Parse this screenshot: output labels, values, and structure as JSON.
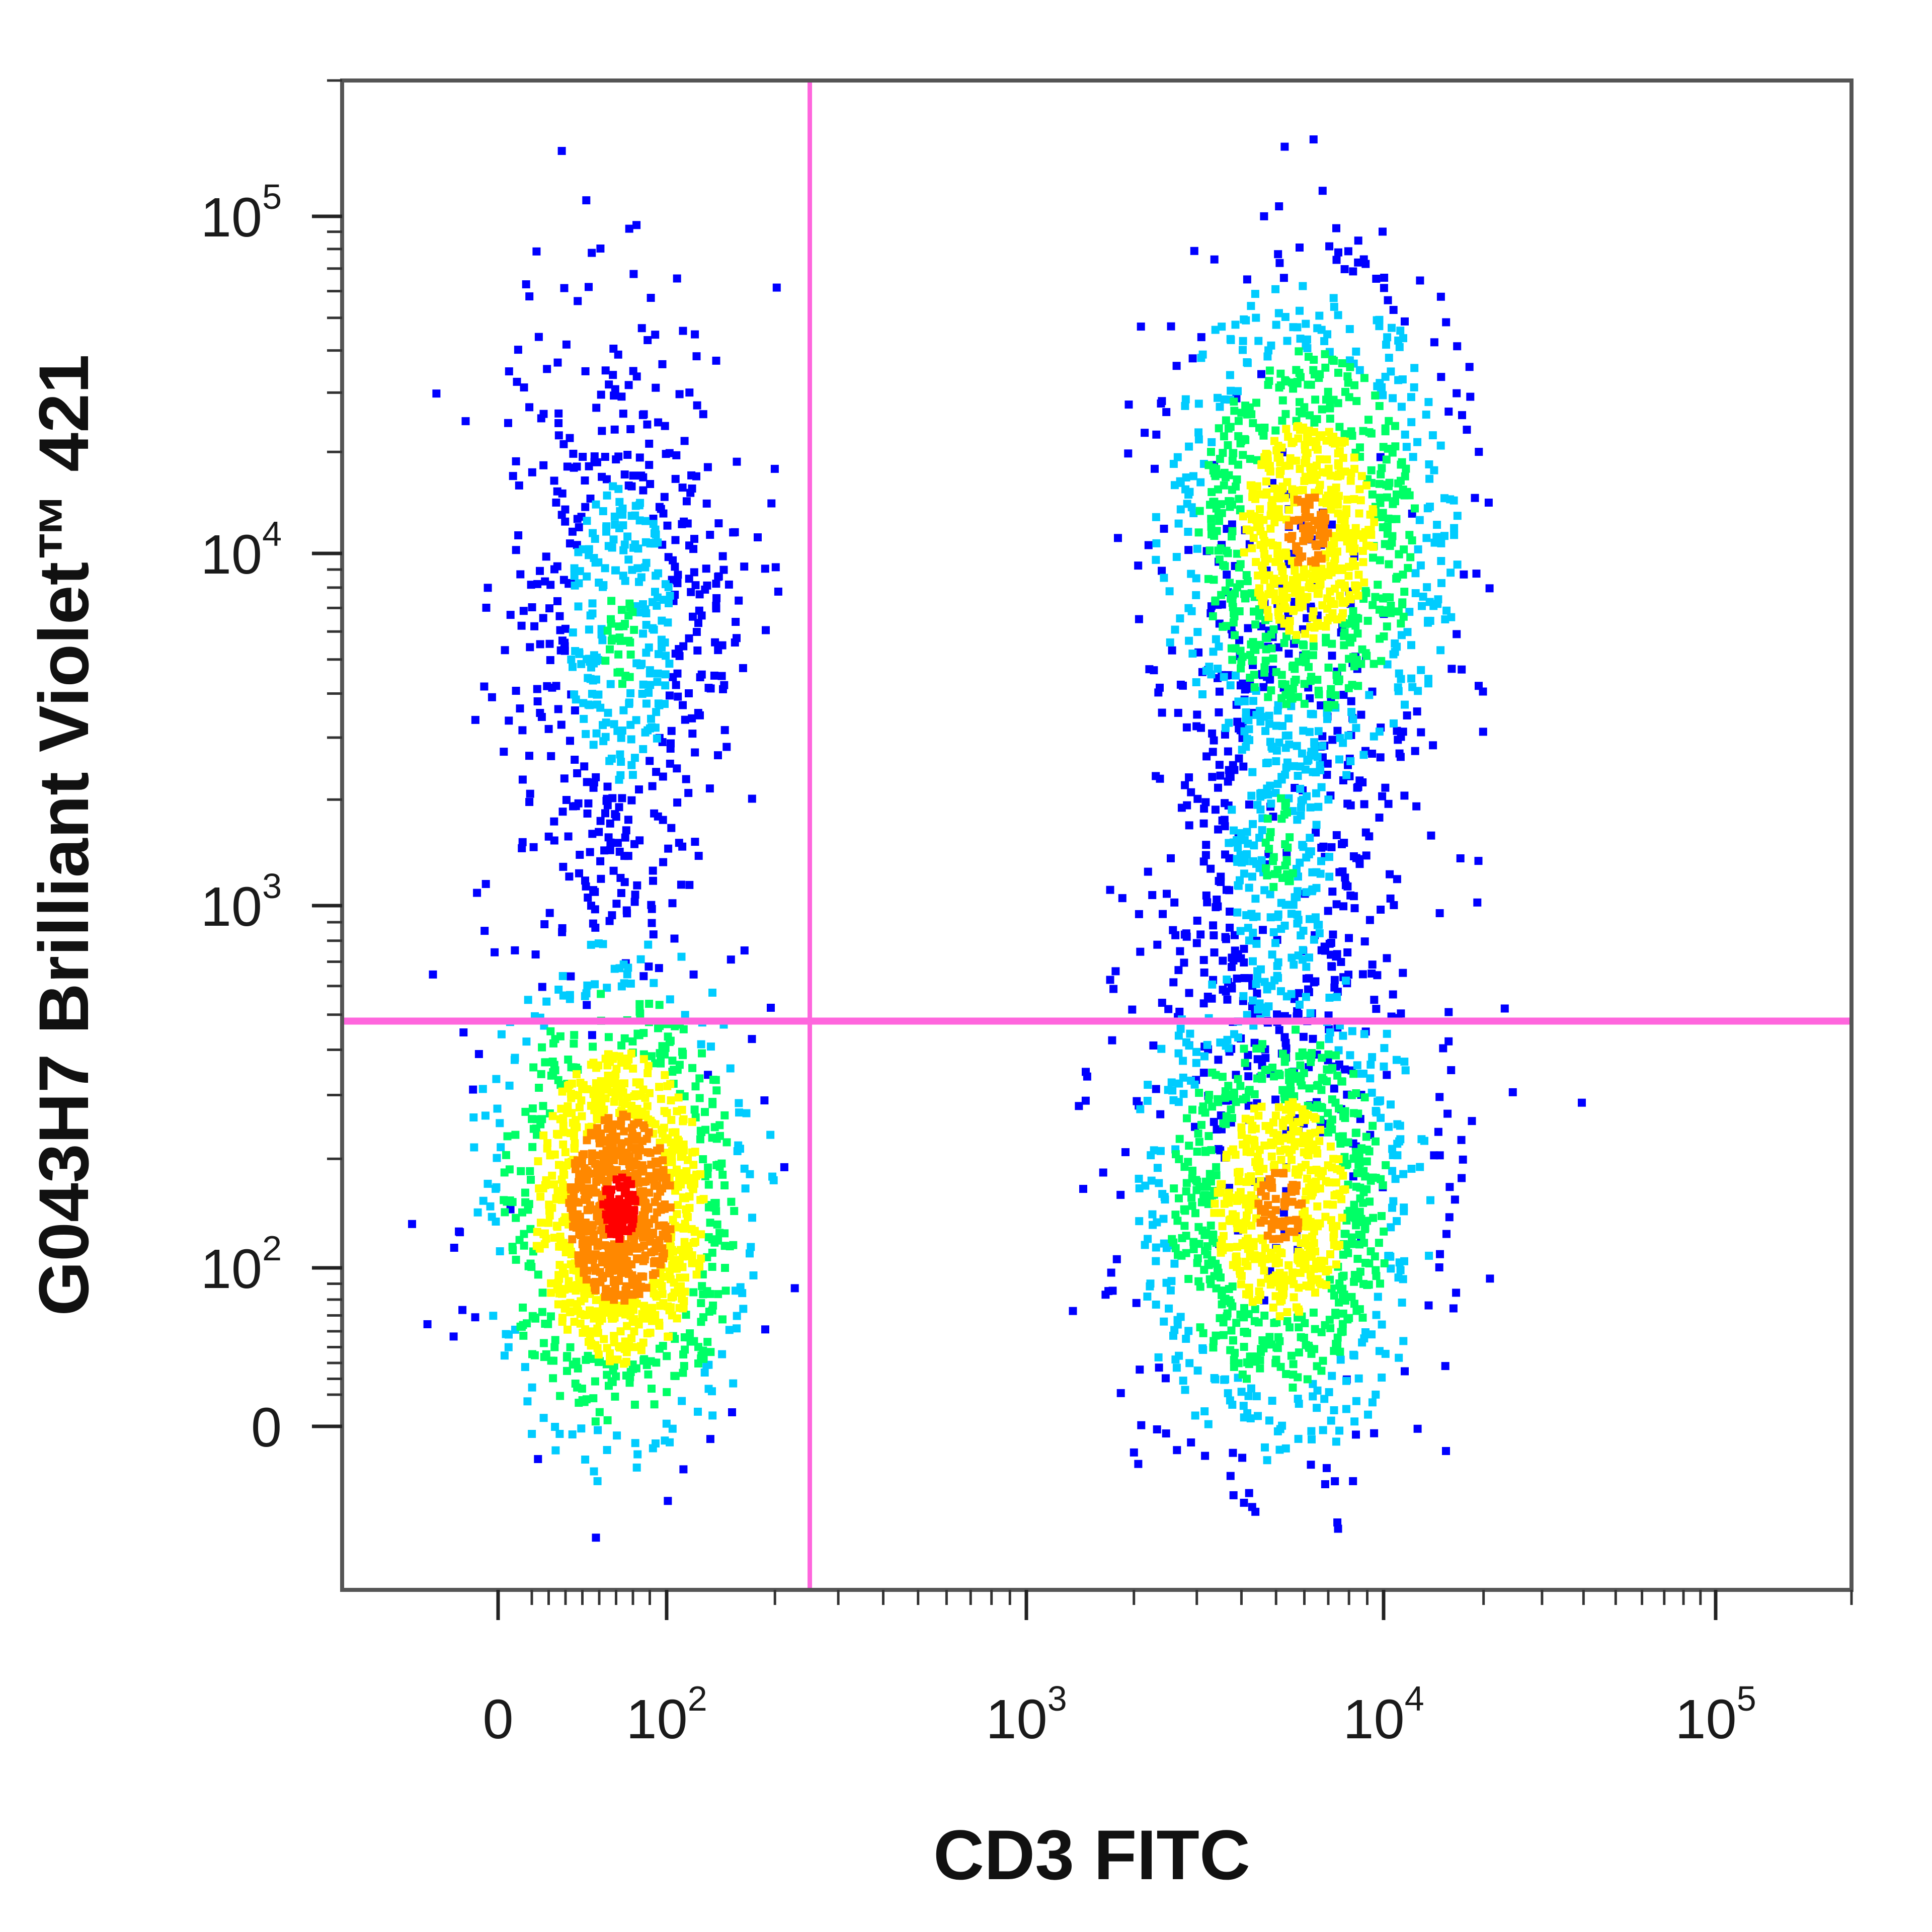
{
  "chart_data": {
    "type": "scatter",
    "style": "flow-cytometry density dot plot",
    "xlabel": "CD3 FITC",
    "ylabel": "G043H7 Brilliant Violet™ 421",
    "x_scale": "biexponential",
    "y_scale": "biexponential",
    "xlim": [
      -100,
      200000
    ],
    "ylim": [
      -120,
      200000
    ],
    "x_ticks": [
      {
        "value": 0,
        "base": "0",
        "exp": ""
      },
      {
        "value": 100,
        "base": "10",
        "exp": "2"
      },
      {
        "value": 1000,
        "base": "10",
        "exp": "3"
      },
      {
        "value": 10000,
        "base": "10",
        "exp": "4"
      },
      {
        "value": 100000,
        "base": "10",
        "exp": "5"
      }
    ],
    "y_ticks": [
      {
        "value": 0,
        "base": "0",
        "exp": ""
      },
      {
        "value": 100,
        "base": "10",
        "exp": "2"
      },
      {
        "value": 1000,
        "base": "10",
        "exp": "3"
      },
      {
        "value": 10000,
        "base": "10",
        "exp": "4"
      },
      {
        "value": 100000,
        "base": "10",
        "exp": "5"
      }
    ],
    "quadrant_gates": {
      "x": 250,
      "y": 480,
      "color": "#ff66dd"
    },
    "density_colors": [
      "#0000ff",
      "#00ccff",
      "#00ff66",
      "#ffff00",
      "#ff8800",
      "#ff0000"
    ],
    "populations": [
      {
        "x_center": 70,
        "y_center": 150,
        "density": "high"
      },
      {
        "x_center": 70,
        "y_center": 6000,
        "density": "low"
      },
      {
        "x_center": 5000,
        "y_center": 150,
        "density": "medium"
      },
      {
        "x_center": 6000,
        "y_center": 12000,
        "density": "medium"
      },
      {
        "x_center": 5000,
        "y_center": 1500,
        "density": "low"
      }
    ],
    "grid": false,
    "legend": "none"
  }
}
